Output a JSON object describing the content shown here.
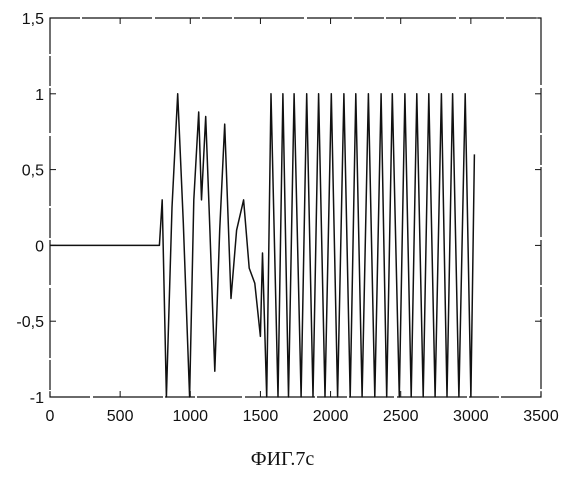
{
  "caption": "ФИГ.7с",
  "chart_data": {
    "type": "line",
    "title": "",
    "xlabel": "",
    "ylabel": "",
    "xlim": [
      0,
      3500
    ],
    "ylim": [
      -1,
      1.5
    ],
    "x_ticks": [
      0,
      500,
      1000,
      1500,
      2000,
      2500,
      3000,
      3500
    ],
    "x_tick_labels": [
      "0",
      "500",
      "1000",
      "1500",
      "2000",
      "2500",
      "3000",
      "3500"
    ],
    "y_ticks": [
      -1,
      -0.5,
      0,
      0.5,
      1,
      1.5
    ],
    "y_tick_labels": [
      "-1",
      "-0,5",
      "0",
      "0,5",
      "1",
      "1,5"
    ],
    "grid": false,
    "line_color": "#111111",
    "series": [
      {
        "x": [
          0,
          780,
          800,
          830,
          870,
          910,
          950,
          995,
          1025,
          1060,
          1080,
          1110,
          1140,
          1175,
          1210,
          1245,
          1290,
          1330,
          1380,
          1420,
          1460,
          1500,
          1515,
          1545,
          1575,
          1625,
          1660,
          1700,
          1740,
          1790,
          1830,
          1875,
          1915,
          1960,
          2005,
          2050,
          2095,
          2140,
          2180,
          2225,
          2270,
          2315,
          2360,
          2400,
          2440,
          2490,
          2530,
          2575,
          2615,
          2660,
          2700,
          2745,
          2790,
          2830,
          2870,
          2915,
          2960,
          3000,
          3025
        ],
        "y": [
          0,
          0,
          0.3,
          -1,
          0.25,
          1,
          0.15,
          -1,
          0.3,
          0.88,
          0.3,
          0.85,
          0.1,
          -0.83,
          0.1,
          0.8,
          -0.35,
          0.1,
          0.3,
          -0.15,
          -0.25,
          -0.6,
          -0.05,
          -1,
          1,
          -1,
          1,
          -1,
          1,
          -1,
          1,
          -1,
          1,
          -1,
          1,
          -1,
          1,
          -1,
          1,
          -1,
          1,
          -1,
          1,
          -1,
          1,
          -1,
          1,
          -1,
          1,
          -1,
          1,
          -1,
          1,
          -1,
          1,
          -1,
          1,
          -1,
          0.6
        ]
      }
    ]
  }
}
